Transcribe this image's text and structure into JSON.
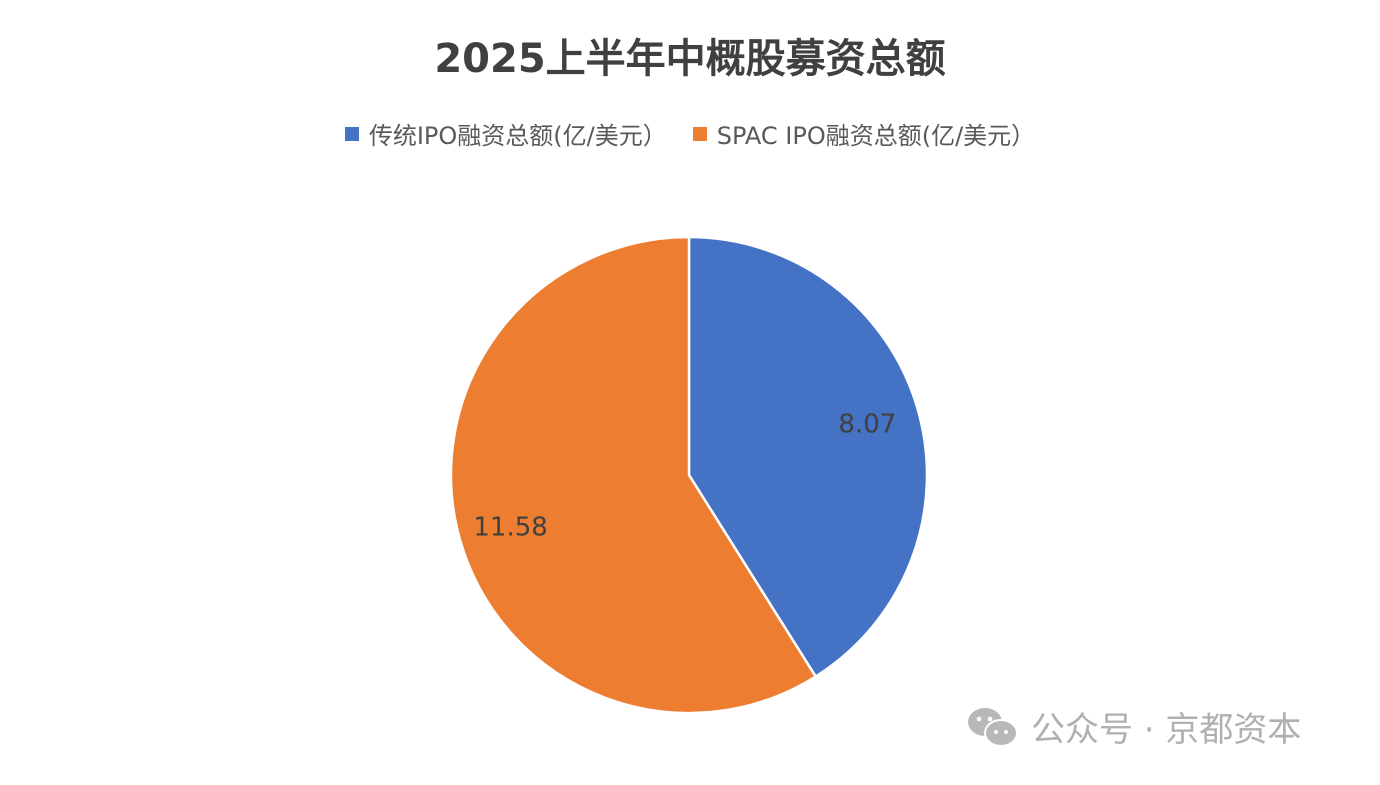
{
  "chart_data": {
    "type": "pie",
    "title": "2025上半年中概股募资总额",
    "legend_position": "top",
    "slices": [
      {
        "label": "传统IPO融资总额(亿/美元）",
        "value": 8.07,
        "data_label": "8.07",
        "color": "#4472C4"
      },
      {
        "label": "SPAC IPO融资总额(亿/美元）",
        "value": 11.58,
        "data_label": "11.58",
        "color": "#ED7D31"
      }
    ]
  },
  "watermark": {
    "text": "公众号 · 京都资本",
    "icon": "wechat-icon"
  }
}
